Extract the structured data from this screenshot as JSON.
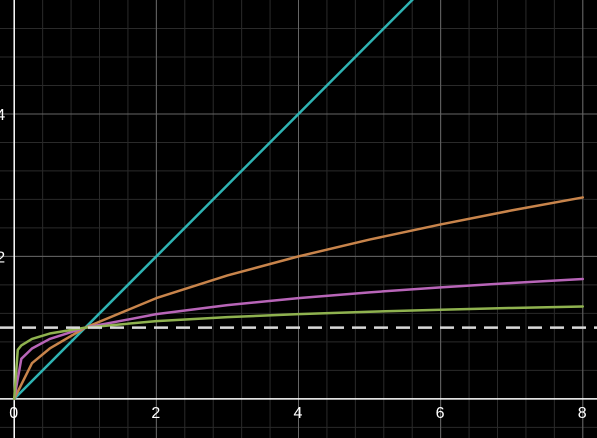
{
  "chart_data": {
    "type": "line",
    "title": "",
    "xlabel": "",
    "ylabel": "",
    "xlim": [
      -0.2,
      8.2
    ],
    "ylim": [
      -0.55,
      5.6
    ],
    "grid": true,
    "background": "#000000",
    "x_ticks": [
      {
        "value": 0,
        "label": "0"
      },
      {
        "value": 2,
        "label": "2"
      },
      {
        "value": 4,
        "label": "4"
      },
      {
        "value": 6,
        "label": "6"
      },
      {
        "value": 8,
        "label": "8"
      }
    ],
    "y_ticks": [
      {
        "value": 2,
        "label": "2"
      },
      {
        "value": 4,
        "label": "4"
      }
    ],
    "series": [
      {
        "color": "#2fb3b3",
        "x": [
          0,
          8
        ],
        "y": [
          0,
          8
        ]
      },
      {
        "color": "#c8844b",
        "x": [
          0,
          0.25,
          0.5,
          1,
          2,
          3,
          4,
          5,
          6,
          7,
          8
        ],
        "y": [
          0,
          0.5,
          0.707,
          1,
          1.414,
          1.732,
          2,
          2.236,
          2.449,
          2.646,
          2.828
        ]
      },
      {
        "color": "#b865b8",
        "x": [
          0,
          0.1,
          0.25,
          0.5,
          1,
          2,
          3,
          4,
          5,
          6,
          7,
          8
        ],
        "y": [
          0,
          0.562,
          0.707,
          0.841,
          1,
          1.189,
          1.316,
          1.414,
          1.495,
          1.565,
          1.627,
          1.682
        ]
      },
      {
        "color": "#8fb24f",
        "x": [
          0,
          0.05,
          0.1,
          0.25,
          0.5,
          1,
          2,
          3,
          4,
          5,
          6,
          7,
          8
        ],
        "y": [
          0,
          0.688,
          0.75,
          0.841,
          0.917,
          1,
          1.091,
          1.147,
          1.189,
          1.223,
          1.251,
          1.276,
          1.297
        ]
      },
      {
        "color": "#d9d9d9",
        "dashed": true,
        "x": [
          -0.2,
          8.2
        ],
        "y": [
          1,
          1
        ]
      }
    ]
  }
}
